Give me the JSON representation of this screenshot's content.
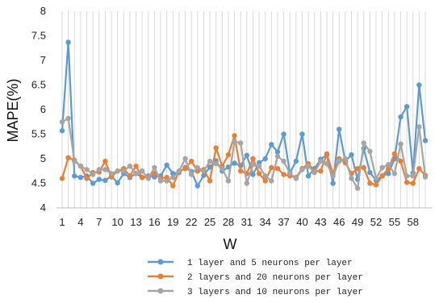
{
  "chart_data": {
    "type": "line",
    "title": "",
    "xlabel": "W",
    "ylabel": "MAPE(%)",
    "ylim": [
      4,
      8
    ],
    "yticks": [
      "4",
      "4.5",
      "5",
      "5.5",
      "6",
      "6.5",
      "7",
      "7.5",
      "8"
    ],
    "xlim": [
      1,
      60
    ],
    "xticks": [
      "1",
      "4",
      "7",
      "10",
      "13",
      "16",
      "19",
      "22",
      "25",
      "28",
      "31",
      "34",
      "37",
      "40",
      "43",
      "46",
      "49",
      "52",
      "55",
      "58"
    ],
    "grid": "vertical",
    "legend": "bottom",
    "x": [
      1,
      2,
      3,
      4,
      5,
      6,
      7,
      8,
      9,
      10,
      11,
      12,
      13,
      14,
      15,
      16,
      17,
      18,
      19,
      20,
      21,
      22,
      23,
      24,
      25,
      26,
      27,
      28,
      29,
      30,
      31,
      32,
      33,
      34,
      35,
      36,
      37,
      38,
      39,
      40,
      41,
      42,
      43,
      44,
      45,
      46,
      47,
      48,
      49,
      50,
      51,
      52,
      53,
      54,
      55,
      56,
      57,
      58,
      59,
      60
    ],
    "series": [
      {
        "name": "1 layer and 5 neurons per layer",
        "color": "#5b9bd5",
        "values": [
          5.57,
          7.37,
          4.65,
          4.62,
          4.65,
          4.5,
          4.58,
          4.56,
          4.65,
          4.51,
          4.7,
          4.62,
          4.7,
          4.62,
          4.65,
          4.63,
          4.65,
          4.87,
          4.7,
          4.72,
          4.82,
          4.74,
          4.45,
          4.66,
          4.83,
          4.96,
          4.75,
          4.83,
          4.91,
          4.86,
          5.07,
          4.68,
          4.92,
          5.0,
          5.29,
          5.14,
          5.5,
          4.71,
          4.95,
          5.5,
          4.65,
          4.8,
          4.99,
          5.08,
          4.5,
          5.6,
          4.95,
          5.08,
          4.58,
          5.21,
          4.72,
          4.56,
          4.65,
          4.7,
          5.0,
          5.85,
          6.06,
          4.71,
          6.5,
          5.37
        ]
      },
      {
        "name": "2 layers and 20 neurons per layer",
        "color": "#ed7d31",
        "values": [
          4.6,
          5.02,
          4.97,
          4.85,
          4.6,
          4.72,
          4.73,
          4.95,
          4.63,
          4.75,
          4.8,
          4.65,
          4.85,
          4.62,
          4.63,
          4.7,
          4.6,
          4.62,
          4.45,
          4.75,
          4.8,
          4.95,
          4.75,
          4.78,
          4.55,
          5.22,
          4.85,
          5.08,
          5.47,
          4.75,
          4.7,
          5.0,
          4.7,
          4.55,
          4.82,
          4.8,
          4.68,
          4.65,
          4.62,
          4.8,
          4.9,
          4.75,
          4.75,
          5.1,
          4.7,
          5.0,
          4.92,
          4.7,
          4.8,
          4.82,
          4.5,
          4.47,
          4.65,
          4.8,
          5.1,
          4.95,
          4.52,
          4.5,
          4.8,
          4.66
        ]
      },
      {
        "name": "3 layers and 10 neurons per layer",
        "color": "#a5a5a5",
        "values": [
          5.75,
          5.82,
          4.95,
          4.85,
          4.78,
          4.68,
          4.78,
          4.78,
          4.7,
          4.75,
          4.75,
          4.85,
          4.7,
          4.75,
          4.6,
          4.82,
          4.55,
          4.55,
          4.62,
          4.75,
          5.0,
          4.68,
          4.82,
          4.75,
          4.95,
          4.9,
          4.8,
          4.55,
          5.35,
          5.32,
          4.5,
          4.88,
          4.85,
          4.65,
          4.55,
          5.05,
          4.95,
          4.7,
          4.6,
          4.78,
          4.85,
          4.72,
          4.95,
          4.9,
          4.65,
          4.95,
          5.0,
          4.6,
          4.4,
          5.32,
          5.15,
          4.6,
          4.82,
          4.88,
          4.7,
          5.3,
          4.65,
          4.65,
          5.65,
          4.63
        ]
      }
    ]
  }
}
